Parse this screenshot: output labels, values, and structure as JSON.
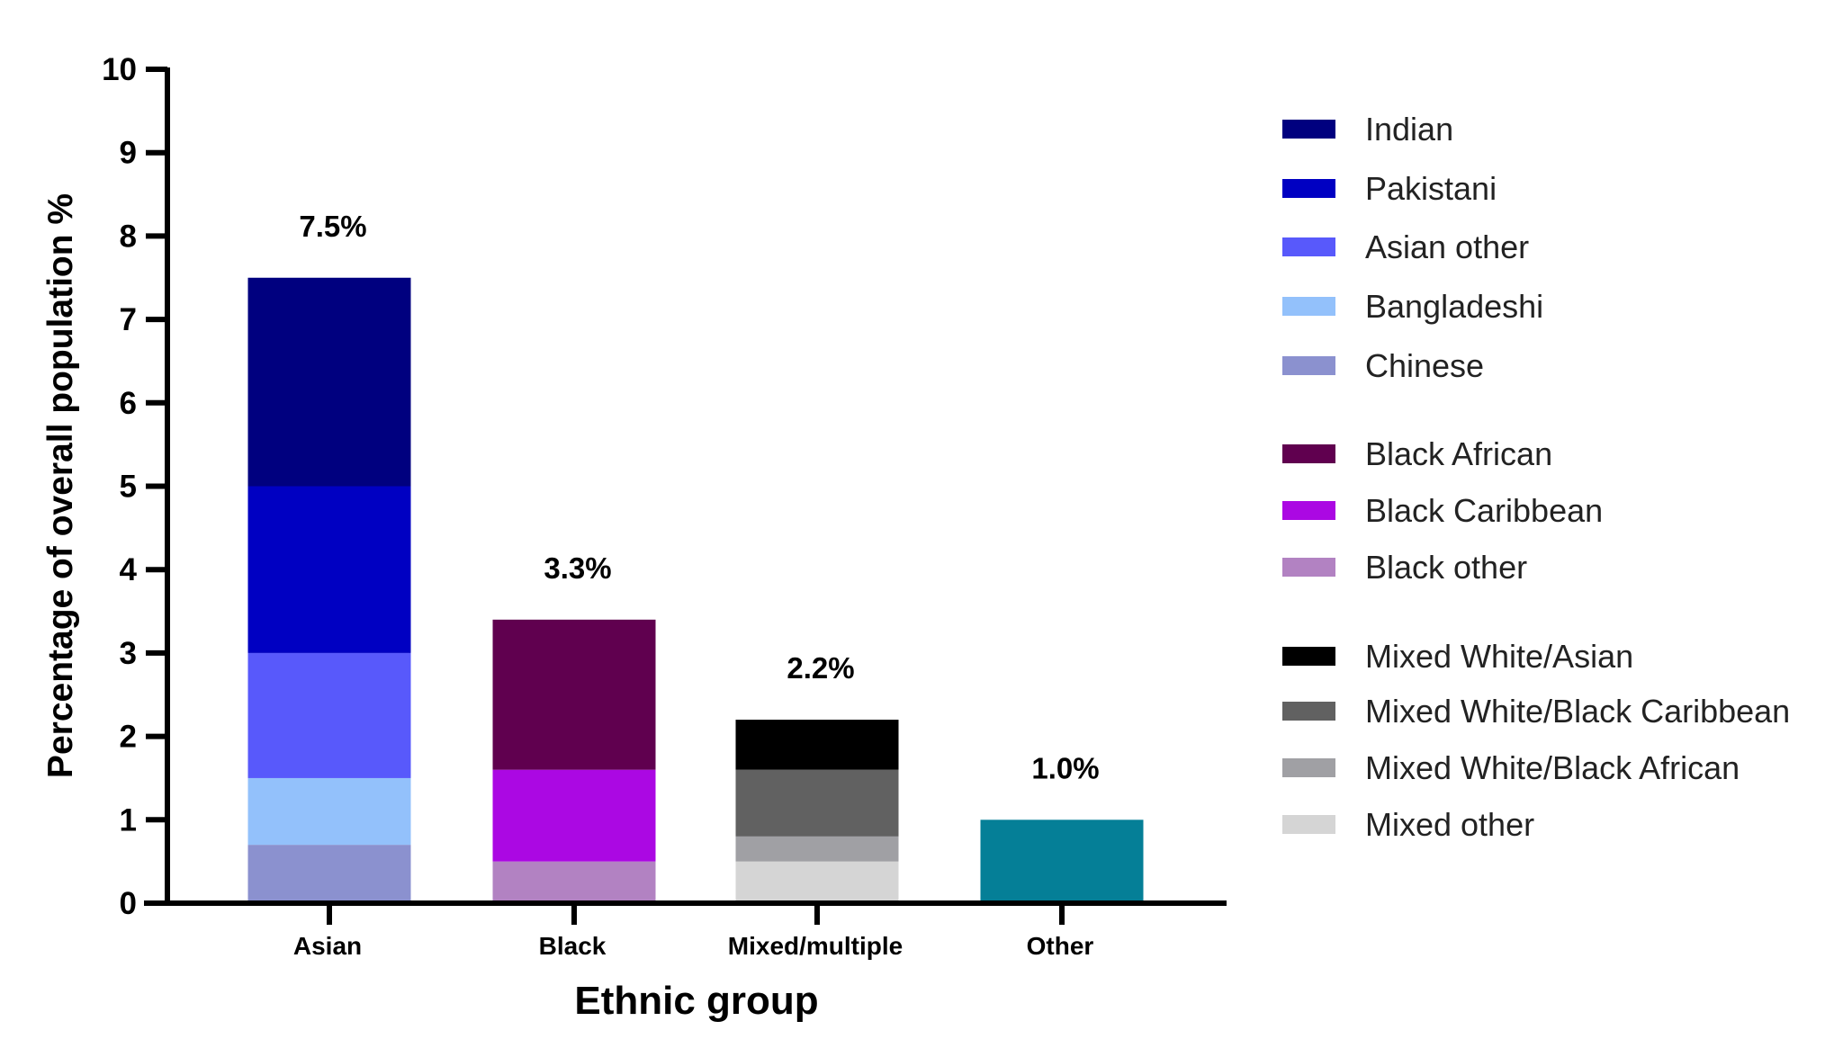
{
  "chart_data": {
    "type": "bar",
    "stacked": true,
    "xlabel": "Ethnic group",
    "ylabel": "Percentage of overall population %",
    "ylim": [
      0,
      10
    ],
    "yticks": [
      "0",
      "1",
      "2",
      "3",
      "4",
      "5",
      "6",
      "7",
      "8",
      "9",
      "10"
    ],
    "grid": false,
    "legend_position": "right",
    "categories": [
      "Asian",
      "Black",
      "Mixed/multiple",
      "Other"
    ],
    "totals_labels": [
      "7.5%",
      "3.3%",
      "2.2%",
      "1.0%"
    ],
    "series": [
      {
        "name": "Chinese",
        "color": "#8b91cf",
        "category": "Asian",
        "value": 0.7
      },
      {
        "name": "Bangladeshi",
        "color": "#93c1fb",
        "category": "Asian",
        "value": 0.8
      },
      {
        "name": "Asian other",
        "color": "#5859fb",
        "category": "Asian",
        "value": 1.5
      },
      {
        "name": "Pakistani",
        "color": "#0000c2",
        "category": "Asian",
        "value": 2.0
      },
      {
        "name": "Indian",
        "color": "#00007f",
        "category": "Asian",
        "value": 2.5
      },
      {
        "name": "Black other",
        "color": "#b282c2",
        "category": "Black",
        "value": 0.5
      },
      {
        "name": "Black Caribbean",
        "color": "#ab08e3",
        "category": "Black",
        "value": 1.1
      },
      {
        "name": "Black African",
        "color": "#60004f",
        "category": "Black",
        "value": 1.8
      },
      {
        "name": "Mixed other",
        "color": "#d5d5d5",
        "category": "Mixed/multiple",
        "value": 0.5
      },
      {
        "name": "Mixed White/Black African",
        "color": "#a0a0a4",
        "category": "Mixed/multiple",
        "value": 0.3
      },
      {
        "name": "Mixed White/Black Caribbean",
        "color": "#616161",
        "category": "Mixed/multiple",
        "value": 0.8
      },
      {
        "name": "Mixed White/Asian",
        "color": "#000000",
        "category": "Mixed/multiple",
        "value": 0.6
      },
      {
        "name": "",
        "color": "#057f97",
        "category": "Other",
        "value": 1.0
      }
    ],
    "legend": [
      {
        "name": "Indian",
        "color": "#00007f"
      },
      {
        "name": "Pakistani",
        "color": "#0000c2"
      },
      {
        "name": "Asian other",
        "color": "#5859fb"
      },
      {
        "name": "Bangladeshi",
        "color": "#93c1fb"
      },
      {
        "name": "Chinese",
        "color": "#8b91cf"
      },
      {
        "name": "Black African",
        "color": "#60004f"
      },
      {
        "name": "Black Caribbean",
        "color": "#ab08e3"
      },
      {
        "name": "Black other",
        "color": "#b282c2"
      },
      {
        "name": "Mixed White/Asian",
        "color": "#000000"
      },
      {
        "name": "Mixed White/Black Caribbean",
        "color": "#616161"
      },
      {
        "name": "Mixed White/Black African",
        "color": "#a0a0a4"
      },
      {
        "name": "Mixed other",
        "color": "#d5d5d5"
      }
    ]
  }
}
